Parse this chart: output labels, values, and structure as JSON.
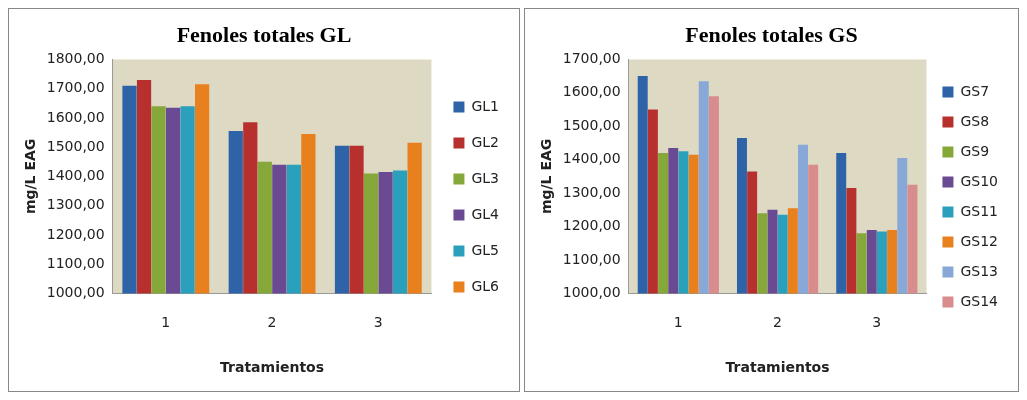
{
  "chart_data": [
    {
      "type": "bar",
      "title": "Fenoles totales GL",
      "xlabel": "Tratamientos",
      "ylabel": "mg/L EAG",
      "categories": [
        "1",
        "2",
        "3"
      ],
      "series": [
        {
          "name": "GL1",
          "color": "#2e63a8",
          "values": [
            1710,
            1555,
            1505
          ]
        },
        {
          "name": "GL2",
          "color": "#b8302e",
          "values": [
            1730,
            1585,
            1505
          ]
        },
        {
          "name": "GL3",
          "color": "#86a83a",
          "values": [
            1640,
            1450,
            1410
          ]
        },
        {
          "name": "GL4",
          "color": "#6a4a92",
          "values": [
            1635,
            1440,
            1415
          ]
        },
        {
          "name": "GL5",
          "color": "#2aa0bc",
          "values": [
            1640,
            1440,
            1420
          ]
        },
        {
          "name": "GL6",
          "color": "#e8801e",
          "values": [
            1715,
            1545,
            1515
          ]
        }
      ],
      "ylim": [
        1000,
        1800
      ],
      "yticks": [
        {
          "value": 1000,
          "label": "1000,00"
        },
        {
          "value": 1100,
          "label": "1100,00"
        },
        {
          "value": 1200,
          "label": "1200,00"
        },
        {
          "value": 1300,
          "label": "1300,00"
        },
        {
          "value": 1400,
          "label": "1400,00"
        },
        {
          "value": 1500,
          "label": "1500,00"
        },
        {
          "value": 1600,
          "label": "1600,00"
        },
        {
          "value": 1700,
          "label": "1700,00"
        },
        {
          "value": 1800,
          "label": "1800,00"
        }
      ],
      "grid": false,
      "legend": "right"
    },
    {
      "type": "bar",
      "title": "Fenoles totales GS",
      "xlabel": "Tratamientos",
      "ylabel": "mg/L EAG",
      "categories": [
        "1",
        "2",
        "3"
      ],
      "series": [
        {
          "name": "GS7",
          "color": "#2e63a8",
          "values": [
            1650,
            1465,
            1420
          ]
        },
        {
          "name": "GS8",
          "color": "#b8302e",
          "values": [
            1550,
            1365,
            1315
          ]
        },
        {
          "name": "GS9",
          "color": "#86a83a",
          "values": [
            1420,
            1240,
            1180
          ]
        },
        {
          "name": "GS10",
          "color": "#6a4a92",
          "values": [
            1435,
            1250,
            1190
          ]
        },
        {
          "name": "GS11",
          "color": "#2aa0bc",
          "values": [
            1425,
            1235,
            1185
          ]
        },
        {
          "name": "GS12",
          "color": "#e8801e",
          "values": [
            1415,
            1255,
            1190
          ]
        },
        {
          "name": "GS13",
          "color": "#88a8d8",
          "values": [
            1635,
            1445,
            1405
          ]
        },
        {
          "name": "GS14",
          "color": "#d88c8c",
          "values": [
            1590,
            1385,
            1325
          ]
        }
      ],
      "ylim": [
        1000,
        1700
      ],
      "yticks": [
        {
          "value": 1000,
          "label": "1000,00"
        },
        {
          "value": 1100,
          "label": "1100,00"
        },
        {
          "value": 1200,
          "label": "1200,00"
        },
        {
          "value": 1300,
          "label": "1300,00"
        },
        {
          "value": 1400,
          "label": "1400,00"
        },
        {
          "value": 1500,
          "label": "1500,00"
        },
        {
          "value": 1600,
          "label": "1600,00"
        },
        {
          "value": 1700,
          "label": "1700,00"
        }
      ],
      "grid": false,
      "legend": "right"
    }
  ]
}
